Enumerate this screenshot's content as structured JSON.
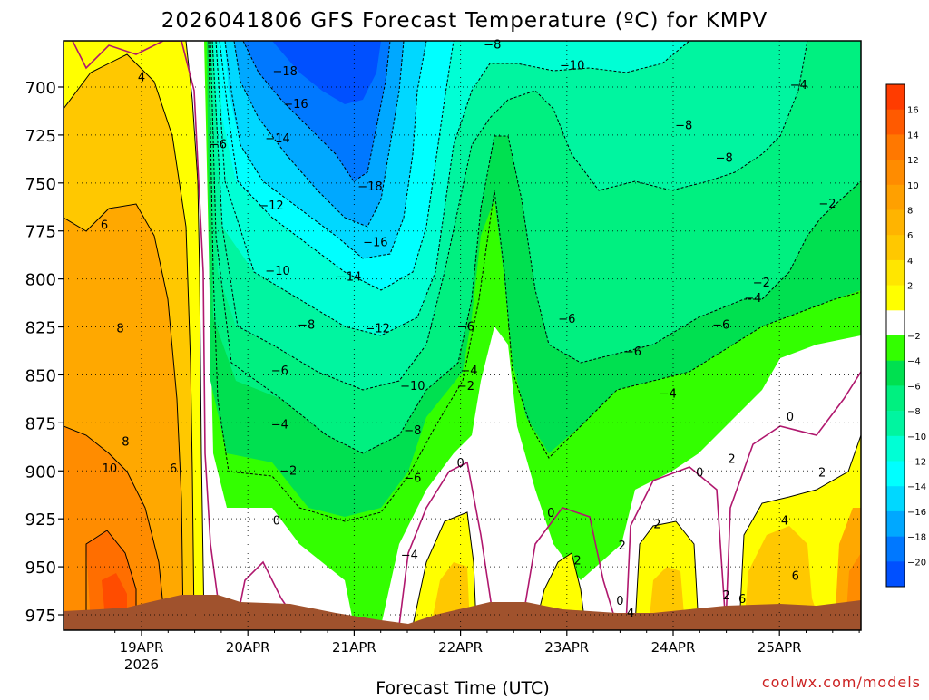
{
  "chart_data": {
    "type": "heatmap",
    "title": "2026041806 GFS Forecast Temperature (ºC) for KMPV",
    "xlabel": "Forecast Time (UTC)",
    "ylabel": "",
    "y_ticks": [
      "700",
      "725",
      "750",
      "775",
      "800",
      "825",
      "850",
      "875",
      "900",
      "925",
      "950",
      "975"
    ],
    "x_ticks": [
      "19APR",
      "20APR",
      "21APR",
      "22APR",
      "23APR",
      "24APR",
      "25APR"
    ],
    "x_year": "2026",
    "colorbar_ticks": [
      "16",
      "14",
      "12",
      "10",
      "8",
      "6",
      "4",
      "2",
      "−2",
      "−4",
      "−6",
      "−8",
      "−10",
      "−12",
      "−14",
      "−16",
      "−18",
      "−20"
    ],
    "contour_labels": [
      {
        "t": "4",
        "d": 0.0,
        "p": 695
      },
      {
        "t": "6",
        "d": -0.35,
        "p": 772
      },
      {
        "t": "8",
        "d": -0.2,
        "p": 826
      },
      {
        "t": "8",
        "d": -0.15,
        "p": 885
      },
      {
        "t": "10",
        "d": -0.3,
        "p": 899
      },
      {
        "t": "6",
        "d": 0.3,
        "p": 899
      },
      {
        "t": "−6",
        "d": 0.72,
        "p": 730
      },
      {
        "t": "−18",
        "d": 1.35,
        "p": 692
      },
      {
        "t": "−16",
        "d": 1.45,
        "p": 709
      },
      {
        "t": "−14",
        "d": 1.28,
        "p": 727
      },
      {
        "t": "−12",
        "d": 1.22,
        "p": 762
      },
      {
        "t": "−10",
        "d": 1.28,
        "p": 796
      },
      {
        "t": "−8",
        "d": 1.55,
        "p": 824
      },
      {
        "t": "−6",
        "d": 1.3,
        "p": 848
      },
      {
        "t": "−4",
        "d": 1.3,
        "p": 876
      },
      {
        "t": "−2",
        "d": 1.38,
        "p": 900
      },
      {
        "t": "0",
        "d": 1.27,
        "p": 926
      },
      {
        "t": "−18",
        "d": 2.15,
        "p": 752
      },
      {
        "t": "−16",
        "d": 2.2,
        "p": 781
      },
      {
        "t": "−14",
        "d": 1.95,
        "p": 799
      },
      {
        "t": "−12",
        "d": 2.22,
        "p": 826
      },
      {
        "t": "−10",
        "d": 2.55,
        "p": 856
      },
      {
        "t": "−8",
        "d": 2.55,
        "p": 879
      },
      {
        "t": "−6",
        "d": 2.55,
        "p": 904
      },
      {
        "t": "−4",
        "d": 2.52,
        "p": 944
      },
      {
        "t": "−6",
        "d": 3.05,
        "p": 825
      },
      {
        "t": "−4",
        "d": 3.08,
        "p": 848
      },
      {
        "t": "−2",
        "d": 3.05,
        "p": 856
      },
      {
        "t": "0",
        "d": 3.0,
        "p": 896
      },
      {
        "t": "−8",
        "d": 3.3,
        "p": 678
      },
      {
        "t": "−10",
        "d": 4.05,
        "p": 689
      },
      {
        "t": "−6",
        "d": 4.0,
        "p": 821
      },
      {
        "t": "0",
        "d": 3.85,
        "p": 922
      },
      {
        "t": "2",
        "d": 4.1,
        "p": 947
      },
      {
        "t": "−8",
        "d": 5.1,
        "p": 720
      },
      {
        "t": "−8",
        "d": 5.48,
        "p": 737
      },
      {
        "t": "−6",
        "d": 4.62,
        "p": 838
      },
      {
        "t": "−4",
        "d": 4.95,
        "p": 860
      },
      {
        "t": "−6",
        "d": 5.45,
        "p": 824
      },
      {
        "t": "2",
        "d": 4.52,
        "p": 939
      },
      {
        "t": "2",
        "d": 4.85,
        "p": 928
      },
      {
        "t": "0",
        "d": 5.25,
        "p": 901
      },
      {
        "t": "2",
        "d": 5.55,
        "p": 894
      },
      {
        "t": "0",
        "d": 4.5,
        "p": 968
      },
      {
        "t": "4",
        "d": 4.6,
        "p": 974
      },
      {
        "t": "2",
        "d": 5.5,
        "p": 965
      },
      {
        "t": "6",
        "d": 5.65,
        "p": 967
      },
      {
        "t": "−4",
        "d": 6.18,
        "p": 699
      },
      {
        "t": "−2",
        "d": 6.45,
        "p": 761
      },
      {
        "t": "−2",
        "d": 5.83,
        "p": 802
      },
      {
        "t": "−4",
        "d": 5.75,
        "p": 810
      },
      {
        "t": "0",
        "d": 6.1,
        "p": 872
      },
      {
        "t": "2",
        "d": 6.4,
        "p": 901
      },
      {
        "t": "4",
        "d": 6.05,
        "p": 926
      },
      {
        "t": "6",
        "d": 6.15,
        "p": 955
      }
    ]
  },
  "watermark": "coolwx.com/models",
  "colors": {
    "terrain": "#a0522d",
    "zero_line": "#b0186e",
    "frame": "#000000",
    "watermark": "#cc2222"
  }
}
